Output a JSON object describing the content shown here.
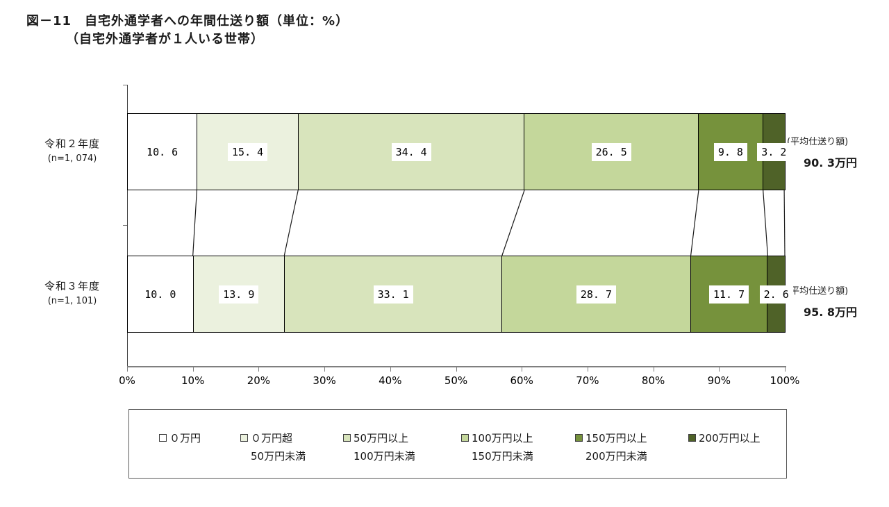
{
  "title": {
    "line1": "図－11　自宅外通学者への年間仕送り額（単位：%）",
    "line2": "（自宅外通学者が１人いる世帯）"
  },
  "chart_data": {
    "type": "bar",
    "stacked": true,
    "orientation": "horizontal",
    "unit": "%",
    "xlim": [
      0,
      100
    ],
    "x_ticks": [
      "0%",
      "10%",
      "20%",
      "30%",
      "40%",
      "50%",
      "60%",
      "70%",
      "80%",
      "90%",
      "100%"
    ],
    "series": [
      {
        "name": "０万円",
        "color": "#FFFFFF"
      },
      {
        "name": "０万円超 50万円未満",
        "color": "#EBF1DE"
      },
      {
        "name": "50万円以上 100万円未満",
        "color": "#D8E4BC"
      },
      {
        "name": "100万円以上 150万円未満",
        "color": "#C4D79B"
      },
      {
        "name": "150万円以上 200万円未満",
        "color": "#76923C"
      },
      {
        "name": "200万円以上",
        "color": "#4F6228"
      }
    ],
    "rows": [
      {
        "label": "令和２年度",
        "n_label": "(n=1, 074)",
        "values": [
          10.6,
          15.4,
          34.4,
          26.5,
          9.8,
          3.2
        ],
        "average_label": "(平均仕送り額)",
        "average_value": "90.3万円"
      },
      {
        "label": "令和３年度",
        "n_label": "(n=1, 101)",
        "values": [
          10.0,
          13.9,
          33.1,
          28.7,
          11.7,
          2.6
        ],
        "average_label": "(平均仕送り額)",
        "average_value": "95.8万円"
      }
    ],
    "legend": [
      {
        "lines": [
          "０万円"
        ],
        "color": "#FFFFFF"
      },
      {
        "lines": [
          "０万円超",
          "50万円未満"
        ],
        "color": "#EBF1DE"
      },
      {
        "lines": [
          "50万円以上",
          "100万円未満"
        ],
        "color": "#D8E4BC"
      },
      {
        "lines": [
          "100万円以上",
          "150万円未満"
        ],
        "color": "#C4D79B"
      },
      {
        "lines": [
          "150万円以上",
          "200万円未満"
        ],
        "color": "#76923C"
      },
      {
        "lines": [
          "200万円以上"
        ],
        "color": "#4F6228"
      }
    ]
  }
}
